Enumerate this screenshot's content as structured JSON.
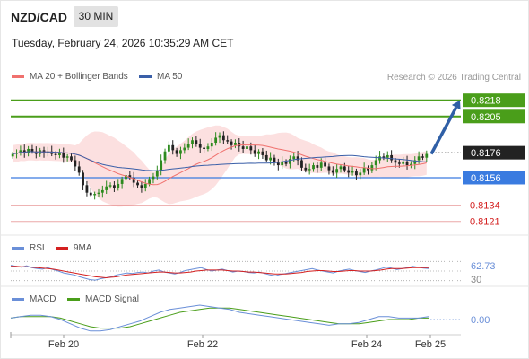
{
  "header": {
    "symbol": "NZD/CAD",
    "timeframe": "30 MIN",
    "datetime": "Tuesday, February 24, 2026 10:35:29 AM CET",
    "credit": "Research © 2026 Trading Central"
  },
  "colors": {
    "up": "#2d8a1e",
    "down": "#222222",
    "ma20": "#f0716e",
    "ma50": "#3a5fa8",
    "band": "#fbd6d6",
    "resistance": "#4a9e1a",
    "support": "#e07070",
    "pivot": "#3a7be0",
    "arrow": "#2f5fa6",
    "rsi": "#6a8fd8",
    "rsi_ma": "#d42020",
    "macd": "#6a8fd8",
    "macd_signal": "#4a9e1a"
  },
  "chart_data": [
    {
      "type": "candlestick",
      "title": "NZD/CAD",
      "legend": [
        "MA 20 + Bollinger Bands",
        "MA 50"
      ],
      "x_ticks": [
        "Feb 20",
        "Feb 22",
        "Feb 24",
        "Feb 25"
      ],
      "ylim": [
        0.811,
        0.823
      ],
      "levels": [
        {
          "value": 0.8218,
          "label": "0.8218",
          "kind": "resistance"
        },
        {
          "value": 0.8205,
          "label": "0.8205",
          "kind": "resistance"
        },
        {
          "value": 0.8156,
          "label": "0.8156",
          "kind": "pivot"
        },
        {
          "value": 0.8134,
          "label": "0.8134",
          "kind": "support"
        },
        {
          "value": 0.8121,
          "label": "0.8121",
          "kind": "support"
        }
      ],
      "last_price": {
        "value": 0.8176,
        "label": "0.8176"
      },
      "projection": {
        "from": 0.8175,
        "to": 0.8218
      },
      "close": [
        0.8175,
        0.8176,
        0.8178,
        0.8176,
        0.8179,
        0.8177,
        0.8175,
        0.8178,
        0.8176,
        0.8177,
        0.8175,
        0.8174,
        0.8176,
        0.8172,
        0.8173,
        0.817,
        0.8165,
        0.816,
        0.815,
        0.8144,
        0.8142,
        0.8143,
        0.8144,
        0.8146,
        0.8149,
        0.815,
        0.8148,
        0.8151,
        0.8155,
        0.8158,
        0.8156,
        0.8152,
        0.815,
        0.8148,
        0.8151,
        0.8155,
        0.8157,
        0.8162,
        0.817,
        0.8177,
        0.8182,
        0.8178,
        0.8175,
        0.8178,
        0.818,
        0.8183,
        0.8186,
        0.8183,
        0.818,
        0.8179,
        0.8181,
        0.8184,
        0.8188,
        0.819,
        0.8186,
        0.8185,
        0.8182,
        0.8184,
        0.8181,
        0.8179,
        0.8181,
        0.8178,
        0.8175,
        0.8177,
        0.8174,
        0.817,
        0.8172,
        0.8168,
        0.8166,
        0.8169,
        0.8167,
        0.8171,
        0.8173,
        0.817,
        0.8164,
        0.8162,
        0.8163,
        0.8166,
        0.8164,
        0.8168,
        0.8165,
        0.8162,
        0.816,
        0.8163,
        0.8165,
        0.8162,
        0.816,
        0.8161,
        0.8158,
        0.816,
        0.8164,
        0.8162,
        0.8166,
        0.817,
        0.8173,
        0.8172,
        0.8174,
        0.817,
        0.8168,
        0.8167,
        0.8169,
        0.8166,
        0.8167,
        0.817,
        0.8173,
        0.8172,
        0.8175
      ]
    },
    {
      "type": "line",
      "title": "RSI",
      "legend": [
        "RSI",
        "9MA"
      ],
      "ylim": [
        20,
        80
      ],
      "tick_labels": [
        "62.73",
        "30"
      ],
      "rsi": [
        62,
        60,
        58,
        61,
        57,
        55,
        54,
        57,
        53,
        50,
        46,
        44,
        42,
        38,
        35,
        32,
        31,
        34,
        36,
        38,
        42,
        44,
        46,
        45,
        47,
        48,
        46,
        50,
        52,
        48,
        46,
        44,
        47,
        51,
        53,
        55,
        57,
        53,
        50,
        52,
        54,
        51,
        48,
        50,
        49,
        47,
        46,
        48,
        45,
        42,
        40,
        43,
        45,
        47,
        49,
        51,
        53,
        55,
        52,
        50,
        48,
        46,
        50,
        52,
        54,
        51,
        49,
        47,
        50,
        52,
        55,
        58,
        56,
        53,
        55,
        57,
        60,
        58,
        56,
        55
      ],
      "ma": [
        60,
        60,
        59,
        59,
        58,
        57,
        56,
        55,
        54,
        52,
        50,
        48,
        46,
        44,
        42,
        40,
        38,
        37,
        36,
        37,
        38,
        40,
        42,
        43,
        44,
        45,
        46,
        47,
        48,
        48,
        47,
        46,
        46,
        47,
        48,
        50,
        51,
        52,
        52,
        52,
        52,
        51,
        50,
        50,
        49,
        48,
        48,
        47,
        46,
        45,
        44,
        44,
        44,
        45,
        46,
        47,
        49,
        50,
        51,
        51,
        50,
        49,
        49,
        50,
        51,
        51,
        50,
        50,
        50,
        51,
        52,
        54,
        55,
        55,
        55,
        56,
        57,
        57,
        57,
        57
      ]
    },
    {
      "type": "line",
      "title": "MACD",
      "legend": [
        "MACD",
        "MACD Signal"
      ],
      "ylim": [
        -0.001,
        0.001
      ],
      "tick_labels": [
        "0.00"
      ],
      "macd": [
        0.0001,
        0.0002,
        0.0003,
        0.0003,
        0.0002,
        0.0,
        -0.0003,
        -0.0006,
        -0.0008,
        -0.0008,
        -0.0007,
        -0.0005,
        -0.0003,
        -0.0001,
        0.0002,
        0.0005,
        0.0007,
        0.0008,
        0.0009,
        0.001,
        0.0009,
        0.0008,
        0.0007,
        0.0005,
        0.0004,
        0.0003,
        0.0002,
        0.0001,
        0.0,
        -0.0001,
        -0.0002,
        -0.0003,
        -0.0004,
        -0.0003,
        -0.0003,
        -0.0002,
        0.0,
        0.0002,
        0.0002,
        0.0001,
        0.0001,
        0.0001,
        0.0002
      ],
      "signal": [
        0.0001,
        0.0002,
        0.0002,
        0.0002,
        0.0002,
        0.0001,
        -0.0001,
        -0.0003,
        -0.0005,
        -0.0006,
        -0.0006,
        -0.0006,
        -0.0005,
        -0.0003,
        -0.0001,
        0.0001,
        0.0003,
        0.0005,
        0.0006,
        0.0007,
        0.0008,
        0.0008,
        0.0008,
        0.0007,
        0.0006,
        0.0005,
        0.0004,
        0.0003,
        0.0002,
        0.0001,
        0.0,
        -0.0001,
        -0.0002,
        -0.0003,
        -0.0003,
        -0.0003,
        -0.0002,
        -0.0001,
        0.0,
        0.0,
        0.0,
        0.0001,
        0.0001
      ]
    }
  ]
}
